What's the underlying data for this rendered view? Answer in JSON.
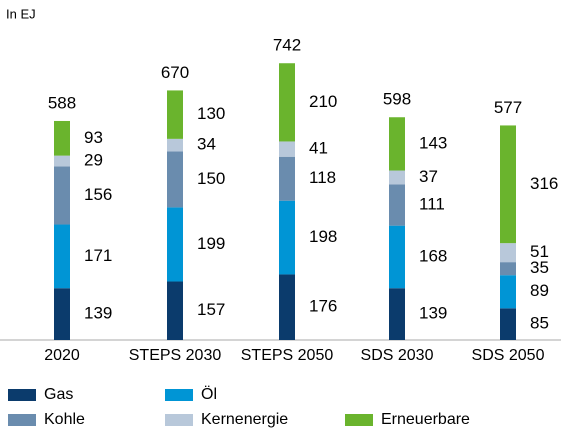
{
  "chart_data": {
    "type": "stacked_bar",
    "unit_label": "In EJ",
    "categories": [
      "2020",
      "STEPS 2030",
      "STEPS 2050",
      "SDS 2030",
      "SDS 2050"
    ],
    "series": [
      {
        "name": "Gas",
        "color": "#0b3b6c",
        "values": [
          139,
          157,
          176,
          139,
          85
        ]
      },
      {
        "name": "Öl",
        "color": "#0095d5",
        "values": [
          171,
          199,
          198,
          168,
          89
        ]
      },
      {
        "name": "Kohle",
        "color": "#6a8cae",
        "values": [
          156,
          150,
          118,
          111,
          35
        ]
      },
      {
        "name": "Kernenergie",
        "color": "#b8c8da",
        "values": [
          29,
          34,
          41,
          37,
          51
        ]
      },
      {
        "name": "Erneuerbare",
        "color": "#6ab42d",
        "values": [
          93,
          130,
          210,
          143,
          316
        ]
      }
    ],
    "totals": [
      588,
      670,
      742,
      598,
      577
    ]
  }
}
